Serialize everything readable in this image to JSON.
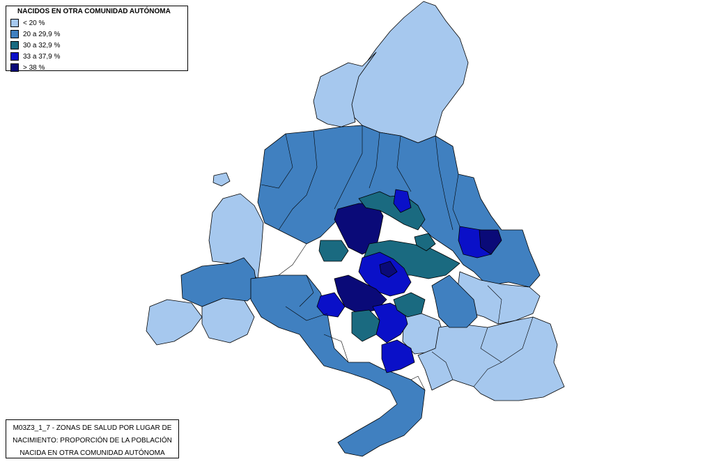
{
  "legend": {
    "title": "NACIDOS EN OTRA COMUNIDAD AUTÓNOMA",
    "items": [
      {
        "label": "< 20 %",
        "color": "#a6c8ee"
      },
      {
        "label": "20 a 29,9 %",
        "color": "#4080c0"
      },
      {
        "label": "30 a 32,9 %",
        "color": "#1a6a80"
      },
      {
        "label": "33 a 37,9 %",
        "color": "#0a10c8"
      },
      {
        "label": "> 38 %",
        "color": "#0a0a78"
      }
    ]
  },
  "caption": {
    "line1": "M03Z3_1_7 - ZONAS DE SALUD POR LUGAR DE",
    "line2": "NACIMIENTO: PROPORCIÓN DE LA POBLACIÓN",
    "line3": "NACIDA EN OTRA COMUNIDAD AUTÓNOMA"
  },
  "colors": {
    "c1": "#a6c8ee",
    "c2": "#4080c0",
    "c3": "#1a6a80",
    "c4": "#0a10c8",
    "c5": "#0a0a78",
    "border": "#000000"
  }
}
